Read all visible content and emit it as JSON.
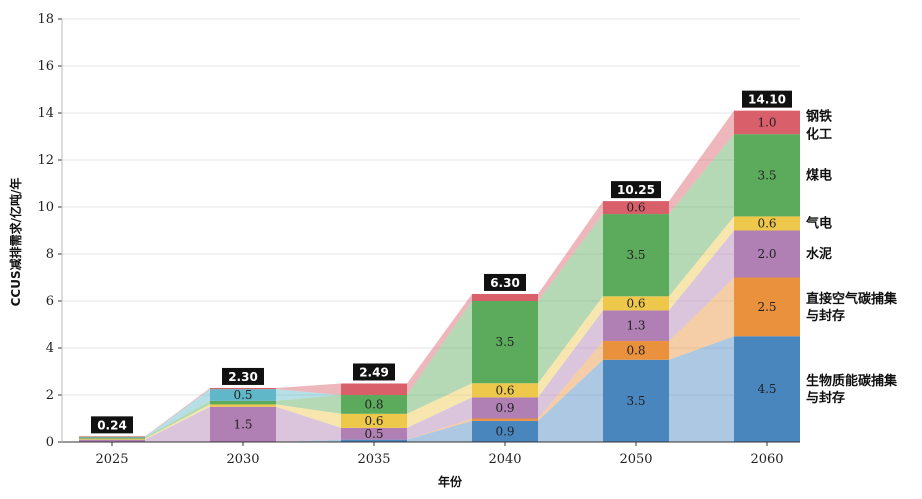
{
  "chart_data": {
    "type": "bar",
    "stacked": true,
    "xlabel": "年份",
    "ylabel": "CCUS减排需求/亿吨/年",
    "ylim": [
      0,
      18
    ],
    "yticks": [
      "0",
      "2",
      "4",
      "6",
      "8",
      "10",
      "12",
      "14",
      "16",
      "18"
    ],
    "categories": [
      "2025",
      "2030",
      "2035",
      "2040",
      "2050",
      "2060"
    ],
    "totals": [
      "0.24",
      "2.30",
      "2.49",
      "6.30",
      "10.25",
      "14.10"
    ],
    "grid": true,
    "legend_position": "right",
    "series": [
      {
        "name": "生物质能碳捕集与封存",
        "legend_lines": [
          "生物质能碳捕集",
          "与封存"
        ],
        "color": "#4a86be",
        "values": [
          0,
          0,
          0.1,
          0.9,
          3.5,
          4.5
        ],
        "labels": [
          "",
          "",
          "",
          "0.9",
          "3.5",
          "4.5"
        ]
      },
      {
        "name": "直接空气碳捕集与封存",
        "legend_lines": [
          "直接空气碳捕集",
          "与封存"
        ],
        "color": "#e9913c",
        "values": [
          0,
          0,
          0,
          0.1,
          0.8,
          2.5
        ],
        "labels": [
          "",
          "",
          "",
          "",
          "0.8",
          "2.5"
        ]
      },
      {
        "name": "水泥",
        "legend_lines": [
          "水泥"
        ],
        "color": "#b07fb3",
        "values": [
          0.1,
          1.5,
          0.5,
          0.9,
          1.3,
          2.0
        ],
        "labels": [
          "",
          "1.5",
          "0.5",
          "0.9",
          "1.3",
          "2.0"
        ]
      },
      {
        "name": "气电",
        "legend_lines": [
          "气电"
        ],
        "color": "#edc84a",
        "values": [
          0.04,
          0.1,
          0.6,
          0.6,
          0.6,
          0.6
        ],
        "labels": [
          "",
          "",
          "0.6",
          "0.6",
          "0.6",
          "0.6"
        ]
      },
      {
        "name": "煤电",
        "legend_lines": [
          "煤电"
        ],
        "color": "#5cab5c",
        "values": [
          0.05,
          0.15,
          0.8,
          3.5,
          3.5,
          3.5
        ],
        "labels": [
          "",
          "",
          "0.8",
          "3.5",
          "3.5",
          "3.5"
        ]
      },
      {
        "name": "化工",
        "legend_lines": [
          "化工"
        ],
        "color": "#5fb7c8",
        "values": [
          0.02,
          0.5,
          0,
          0,
          0,
          0
        ],
        "labels": [
          "",
          "0.5",
          "",
          "",
          "",
          ""
        ]
      },
      {
        "name": "钢铁",
        "legend_lines": [
          "钢铁"
        ],
        "color": "#d95f6a",
        "values": [
          0.03,
          0.05,
          0.49,
          0.3,
          0.55,
          1.0
        ],
        "labels": [
          "",
          "",
          "",
          "",
          "0.6",
          "1.0"
        ]
      }
    ]
  },
  "colors": {
    "grid": "#e6e6e6",
    "axis": "#333333",
    "total_box": "#111111"
  }
}
